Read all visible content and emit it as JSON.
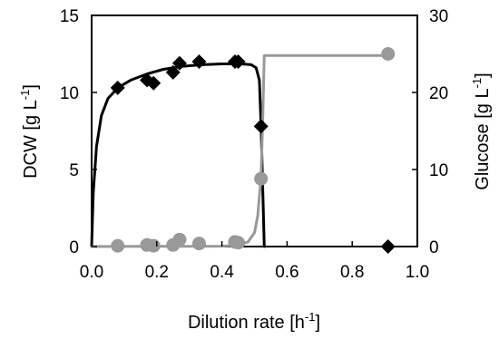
{
  "chart_data": {
    "type": "line",
    "title": "",
    "xlabel": {
      "base": "Dilution rate [h",
      "sup": "-1",
      "tail": "]"
    },
    "ylabel_left": {
      "base": "DCW [g L",
      "sup": "-1",
      "tail": "]"
    },
    "ylabel_right": {
      "base": "Glucose [g L",
      "sup": "-1",
      "tail": "]"
    },
    "xlim": [
      0,
      1.0
    ],
    "ylim_left": [
      0,
      15
    ],
    "ylim_right": [
      0,
      30
    ],
    "xticks": [
      "0.0",
      "0.2",
      "0.4",
      "0.6",
      "0.8",
      "1.0"
    ],
    "yticks_left": [
      "0",
      "5",
      "10",
      "15"
    ],
    "yticks_right": [
      "0",
      "10",
      "20",
      "30"
    ],
    "grid": false,
    "legend": "none",
    "series": [
      {
        "axis": "left",
        "marker": "diamond",
        "color": "#000000",
        "points": [
          {
            "x": 0.08,
            "y": 10.3
          },
          {
            "x": 0.17,
            "y": 10.8
          },
          {
            "x": 0.19,
            "y": 10.6
          },
          {
            "x": 0.25,
            "y": 11.3
          },
          {
            "x": 0.27,
            "y": 11.9
          },
          {
            "x": 0.33,
            "y": 12.0
          },
          {
            "x": 0.44,
            "y": 12.0
          },
          {
            "x": 0.45,
            "y": 12.0
          },
          {
            "x": 0.52,
            "y": 7.8
          },
          {
            "x": 0.91,
            "y": 0.0
          }
        ],
        "fit": [
          {
            "x": 0.0,
            "y": 0.0
          },
          {
            "x": 0.005,
            "y": 3.5
          },
          {
            "x": 0.015,
            "y": 6.5
          },
          {
            "x": 0.03,
            "y": 8.5
          },
          {
            "x": 0.05,
            "y": 9.6
          },
          {
            "x": 0.08,
            "y": 10.3
          },
          {
            "x": 0.12,
            "y": 10.8
          },
          {
            "x": 0.17,
            "y": 11.2
          },
          {
            "x": 0.22,
            "y": 11.5
          },
          {
            "x": 0.28,
            "y": 11.7
          },
          {
            "x": 0.34,
            "y": 11.8
          },
          {
            "x": 0.4,
            "y": 11.85
          },
          {
            "x": 0.46,
            "y": 11.85
          },
          {
            "x": 0.49,
            "y": 11.8
          },
          {
            "x": 0.505,
            "y": 11.6
          },
          {
            "x": 0.515,
            "y": 10.8
          },
          {
            "x": 0.52,
            "y": 8.0
          },
          {
            "x": 0.525,
            "y": 4.0
          },
          {
            "x": 0.53,
            "y": 0.0
          }
        ]
      },
      {
        "axis": "right",
        "marker": "circle",
        "color": "#999999",
        "points": [
          {
            "x": 0.08,
            "y": 0.1
          },
          {
            "x": 0.17,
            "y": 0.2
          },
          {
            "x": 0.19,
            "y": 0.1
          },
          {
            "x": 0.25,
            "y": 0.2
          },
          {
            "x": 0.27,
            "y": 0.9
          },
          {
            "x": 0.33,
            "y": 0.4
          },
          {
            "x": 0.44,
            "y": 0.6
          },
          {
            "x": 0.45,
            "y": 0.5
          },
          {
            "x": 0.52,
            "y": 8.8
          },
          {
            "x": 0.91,
            "y": 25.0
          }
        ],
        "fit": [
          {
            "x": 0.0,
            "y": 0.0
          },
          {
            "x": 0.4,
            "y": 0.05
          },
          {
            "x": 0.45,
            "y": 0.2
          },
          {
            "x": 0.48,
            "y": 0.6
          },
          {
            "x": 0.5,
            "y": 1.8
          },
          {
            "x": 0.51,
            "y": 4.0
          },
          {
            "x": 0.52,
            "y": 9.0
          },
          {
            "x": 0.525,
            "y": 16.0
          },
          {
            "x": 0.53,
            "y": 24.8
          },
          {
            "x": 0.91,
            "y": 24.8
          }
        ]
      }
    ]
  }
}
